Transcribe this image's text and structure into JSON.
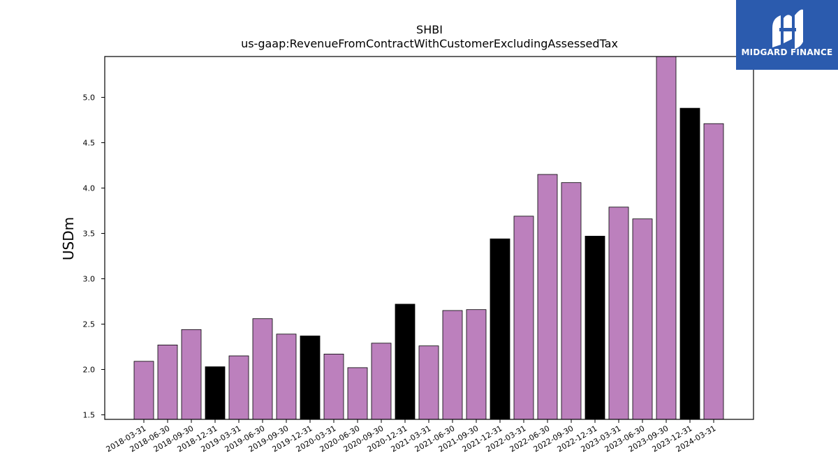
{
  "logo": {
    "text": "MIDGARD FINANCE",
    "background": "#2B5BAE",
    "icon": "midgard-logo-icon"
  },
  "colors": {
    "bar_default": "#BC80BD",
    "bar_highlight": "#000000",
    "frame": "#000000"
  },
  "chart_data": {
    "type": "bar",
    "title": "SHBI",
    "subtitle": "us-gaap:RevenueFromContractWithCustomerExcludingAssessedTax",
    "ylabel": "USDm",
    "xlabel": "",
    "ylim": [
      1.45,
      5.45
    ],
    "yticks": [
      "1.5",
      "2.0",
      "2.5",
      "3.0",
      "3.5",
      "4.0",
      "4.5",
      "5.0"
    ],
    "grid": false,
    "categories": [
      "2018-03-31",
      "2018-06-30",
      "2018-09-30",
      "2018-12-31",
      "2019-03-31",
      "2019-06-30",
      "2019-09-30",
      "2019-12-31",
      "2020-03-31",
      "2020-06-30",
      "2020-09-30",
      "2020-12-31",
      "2021-03-31",
      "2021-06-30",
      "2021-09-30",
      "2021-12-31",
      "2022-03-31",
      "2022-06-30",
      "2022-09-30",
      "2022-12-31",
      "2023-03-31",
      "2023-06-30",
      "2023-09-30",
      "2023-12-31",
      "2024-03-31"
    ],
    "values": [
      2.09,
      2.27,
      2.44,
      2.03,
      2.15,
      2.56,
      2.39,
      2.37,
      2.17,
      2.02,
      2.29,
      2.72,
      2.26,
      2.65,
      2.66,
      3.44,
      3.69,
      4.15,
      4.06,
      3.47,
      3.79,
      3.66,
      5.5,
      4.88,
      4.71
    ],
    "highlighted": [
      false,
      false,
      false,
      true,
      false,
      false,
      false,
      true,
      false,
      false,
      false,
      true,
      false,
      false,
      false,
      true,
      false,
      false,
      false,
      true,
      false,
      false,
      false,
      true,
      false
    ]
  }
}
